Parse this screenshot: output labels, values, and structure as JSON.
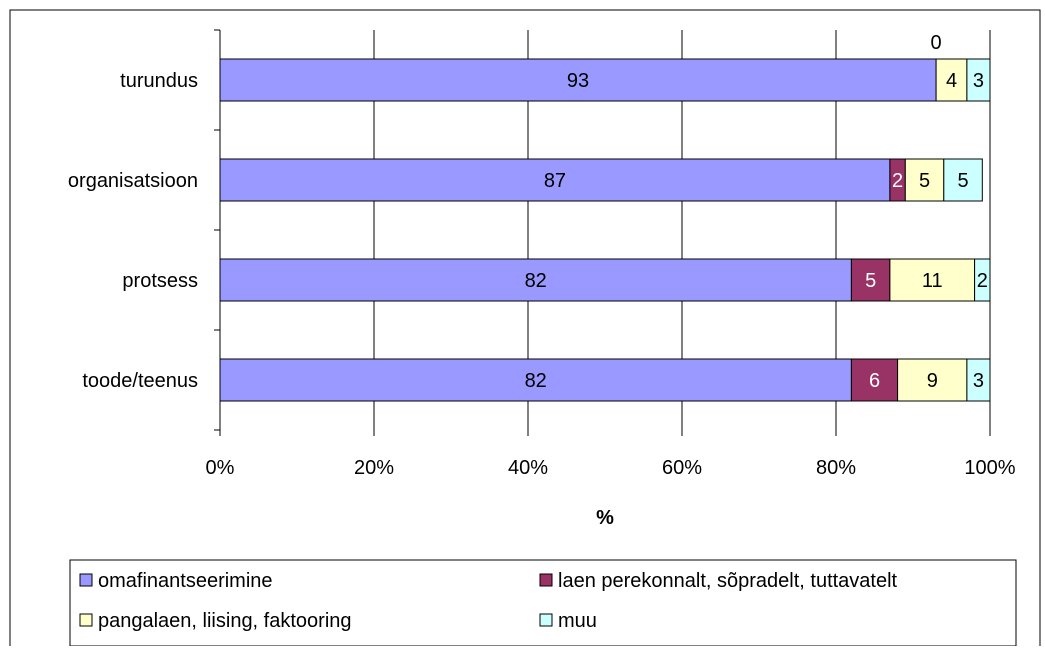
{
  "chart_data": {
    "type": "bar",
    "orientation": "horizontal",
    "stacked": true,
    "percent": true,
    "categories": [
      "turundus",
      "organisatsioon",
      "protsess",
      "toode/teenus"
    ],
    "series": [
      {
        "name": "omafinantseerimine",
        "values": [
          93,
          87,
          82,
          82
        ],
        "color": "#9999ff"
      },
      {
        "name": "laen perekonnalt, sõpradelt, tuttavatelt",
        "values": [
          0,
          2,
          5,
          6
        ],
        "color": "#993366"
      },
      {
        "name": "pangalaen, liising, faktooring",
        "values": [
          4,
          5,
          11,
          9
        ],
        "color": "#ffffcc"
      },
      {
        "name": "muu",
        "values": [
          3,
          5,
          2,
          3
        ],
        "color": "#ccffff"
      }
    ],
    "data_labels": [
      [
        "93",
        "0",
        "4",
        "3"
      ],
      [
        "87",
        "2",
        "5",
        "5"
      ],
      [
        "82",
        "5",
        "11",
        "2"
      ],
      [
        "82",
        "6",
        "9",
        "3"
      ]
    ],
    "x_ticks": [
      "0%",
      "20%",
      "40%",
      "60%",
      "80%",
      "100%"
    ],
    "xlabel": "%",
    "xlim": [
      0,
      100
    ],
    "grid": true,
    "legend_position": "bottom"
  }
}
